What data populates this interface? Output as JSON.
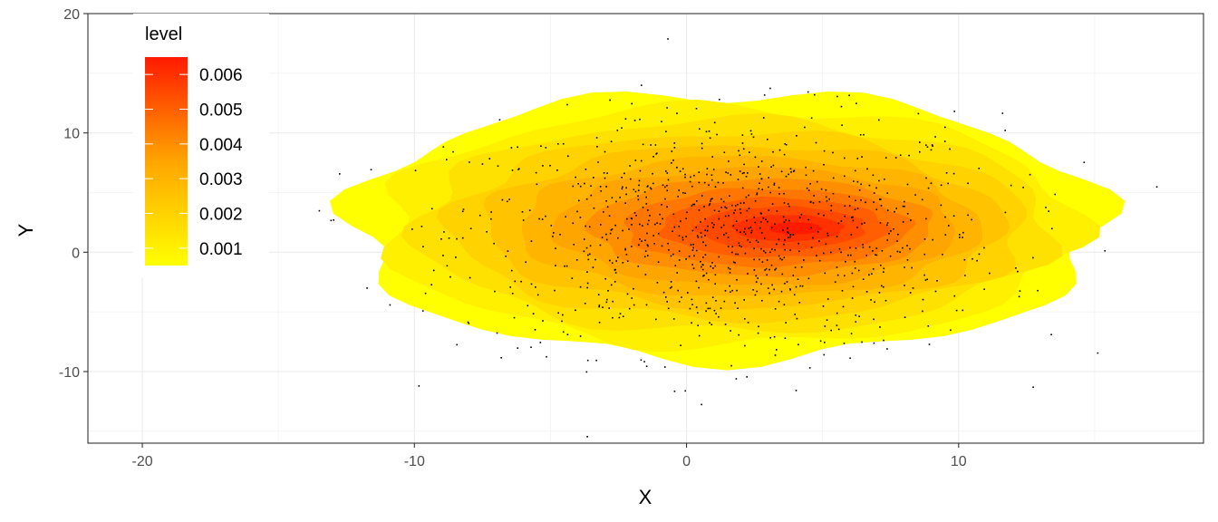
{
  "chart_data": {
    "type": "density-contour-scatter",
    "title": "",
    "xlabel": "X",
    "ylabel": "Y",
    "xlim": [
      -22,
      19
    ],
    "ylim": [
      -16,
      20
    ],
    "x_ticks": [
      -20,
      -10,
      0,
      10
    ],
    "x_tick_labels": [
      "-20",
      "-10",
      "0",
      "10"
    ],
    "y_ticks": [
      -10,
      0,
      10,
      20
    ],
    "y_tick_labels": [
      "-10",
      "0",
      "10",
      "20"
    ],
    "grid": true,
    "legend": {
      "title": "level",
      "placement": "top-left",
      "labels": [
        "0.006",
        "0.005",
        "0.004",
        "0.003",
        "0.002",
        "0.001"
      ],
      "values": [
        0.006,
        0.005,
        0.004,
        0.003,
        0.002,
        0.001
      ],
      "range": [
        0.0005,
        0.0065
      ],
      "color_low": "#ffff00",
      "color_high": "#ff1a00"
    },
    "density_peak": {
      "x": 4,
      "y": 2,
      "max_level": 0.0065
    },
    "outer_contour_level": 0.0005,
    "points_count": 1000,
    "points_spread": {
      "mean_x": 1.5,
      "mean_y": 1.5,
      "sd_x": 5.0,
      "sd_y": 5.0
    }
  }
}
